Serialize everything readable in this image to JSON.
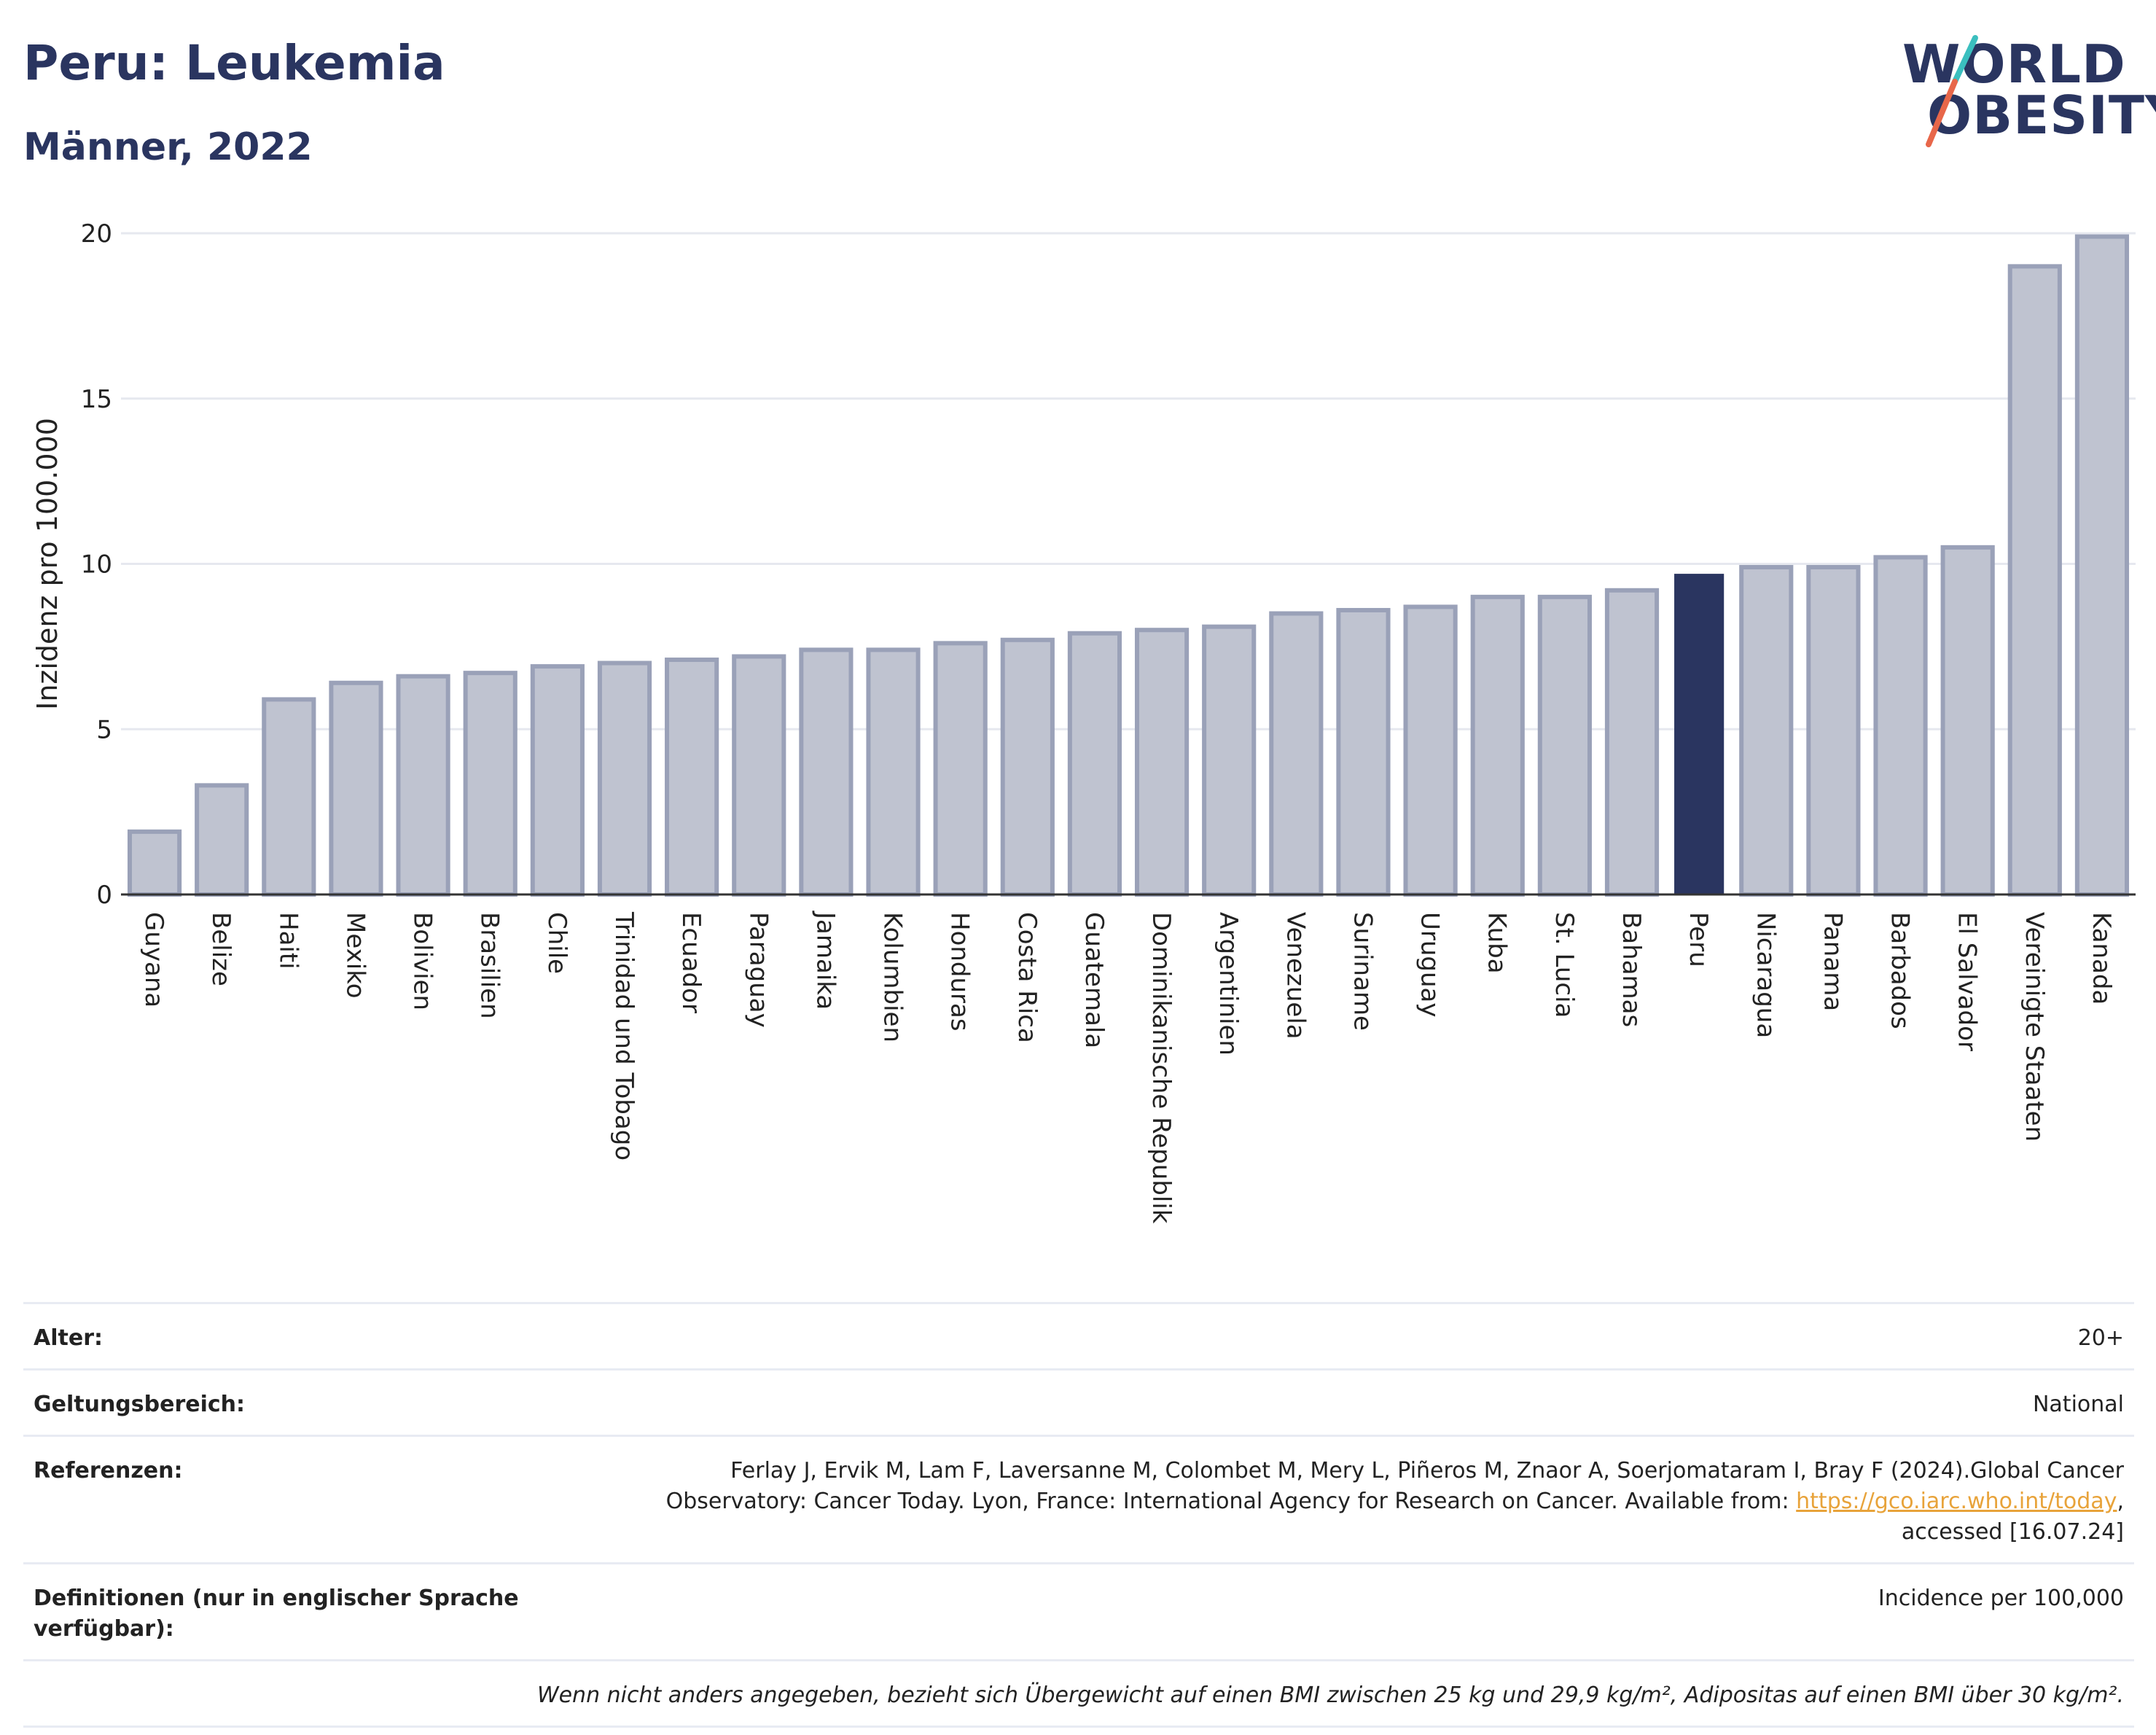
{
  "header": {
    "title": "Peru: Leukemia",
    "subtitle": "Männer, 2022"
  },
  "logo": {
    "line1": "WORLD",
    "line2": "OBESITY",
    "accent_colors": [
      "#3bbfbf",
      "#e8674a"
    ]
  },
  "chart_data": {
    "type": "bar",
    "title": "",
    "xlabel": "",
    "ylabel": "Inzidenz pro 100.000",
    "ylim": [
      0,
      20
    ],
    "yticks": [
      0,
      5,
      10,
      15,
      20
    ],
    "grid": true,
    "highlight": "Peru",
    "colors": {
      "bar": "#bfc3d0",
      "bar_border": "#9aa1b8",
      "highlight": "#2a3560"
    },
    "categories": [
      "Guyana",
      "Belize",
      "Haiti",
      "Mexiko",
      "Bolivien",
      "Brasilien",
      "Chile",
      "Trinidad und Tobago",
      "Ecuador",
      "Paraguay",
      "Jamaika",
      "Kolumbien",
      "Honduras",
      "Costa Rica",
      "Guatemala",
      "Dominikanische Republik",
      "Argentinien",
      "Venezuela",
      "Suriname",
      "Uruguay",
      "Kuba",
      "St. Lucia",
      "Bahamas",
      "Peru",
      "Nicaragua",
      "Panama",
      "Barbados",
      "El Salvador",
      "Vereinigte Staaten",
      "Kanada"
    ],
    "values": [
      1.9,
      3.3,
      5.9,
      6.4,
      6.6,
      6.7,
      6.9,
      7.0,
      7.1,
      7.2,
      7.4,
      7.4,
      7.6,
      7.7,
      7.9,
      8.0,
      8.1,
      8.5,
      8.6,
      8.7,
      9.0,
      9.0,
      9.2,
      9.7,
      9.9,
      9.9,
      10.2,
      10.5,
      19.0,
      19.9
    ]
  },
  "meta": {
    "age_label": "Alter:",
    "age_value": "20+",
    "scope_label": "Geltungsbereich:",
    "scope_value": "National",
    "refs_label": "Referenzen:",
    "refs_text_1": "Ferlay J, Ervik M, Lam F, Laversanne M, Colombet M, Mery L, Piñeros M, Znaor A, Soerjomataram I, Bray F (2024).Global Cancer Observatory: Cancer Today. Lyon, France: International Agency for Research on Cancer. Available from: ",
    "refs_link": "https://gco.iarc.who.int/today",
    "refs_text_2": ", accessed [16.07.24]",
    "def_label": "Definitionen (nur in englischer Sprache verfügbar):",
    "def_value": "Incidence per 100,000",
    "note": "Wenn nicht anders angegeben, bezieht sich Übergewicht auf einen BMI zwischen 25 kg und 29,9 kg/m², Adipositas auf einen BMI über 30 kg/m²."
  }
}
